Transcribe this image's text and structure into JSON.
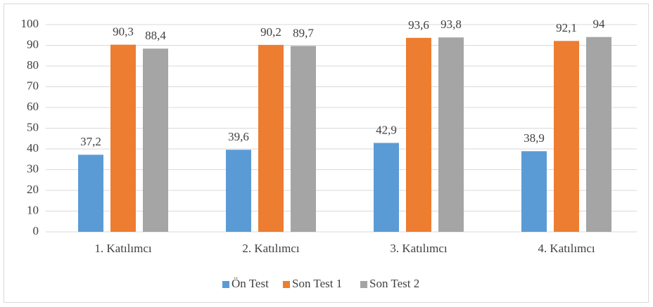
{
  "chart_data": {
    "type": "bar",
    "categories": [
      "1. Katılımcı",
      "2. Katılımcı",
      "3. Katılımcı",
      "4. Katılımcı"
    ],
    "series": [
      {
        "name": "Ön Test",
        "color": "#5b9bd5",
        "values": [
          37.2,
          39.6,
          42.9,
          38.9
        ],
        "value_labels": [
          "37,2",
          "39,6",
          "42,9",
          "38,9"
        ]
      },
      {
        "name": "Son Test 1",
        "color": "#ed7d31",
        "values": [
          90.3,
          90.2,
          93.6,
          92.1
        ],
        "value_labels": [
          "90,3",
          "90,2",
          "93,6",
          "92,1"
        ]
      },
      {
        "name": "Son Test 2",
        "color": "#a5a5a5",
        "values": [
          88.4,
          89.7,
          93.8,
          94
        ],
        "value_labels": [
          "88,4",
          "89,7",
          "93,8",
          "94"
        ]
      }
    ],
    "ylim": [
      0,
      100
    ],
    "yticks": [
      0,
      10,
      20,
      30,
      40,
      50,
      60,
      70,
      80,
      90,
      100
    ],
    "grid": true,
    "legend": "bottom"
  }
}
